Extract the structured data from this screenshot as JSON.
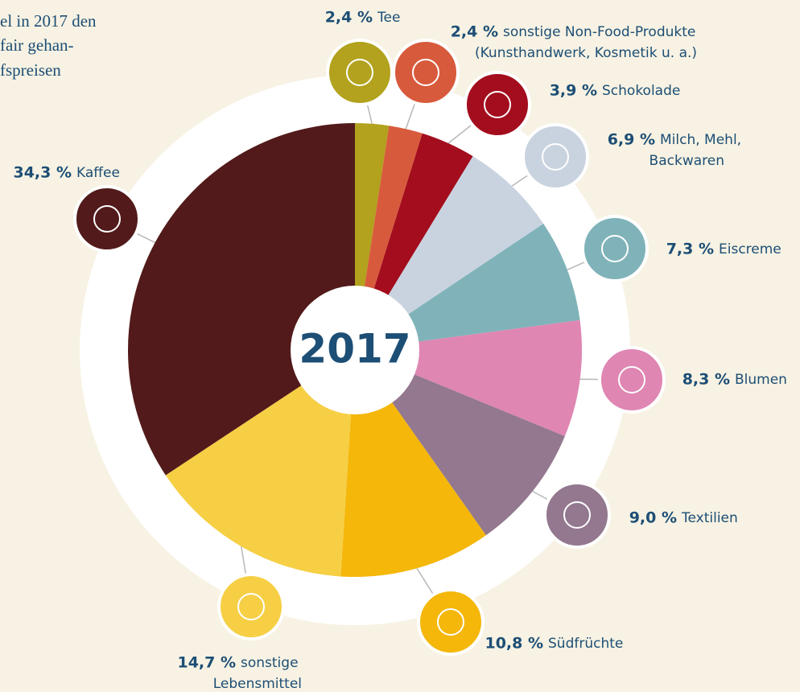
{
  "chart_data": {
    "type": "pie",
    "intro_text": [
      "el in 2017 den",
      "fair gehan-",
      "fspreisen"
    ],
    "center_label": "2017",
    "categories": [
      "Tee",
      "sonstige Non-Food-Produkte\n(Kunsthandwerk, Kosmetik u. a.)",
      "Schokolade",
      "Milch, Mehl,\nBackwaren",
      "Eiscreme",
      "Blumen",
      "Textilien",
      "Südfrüchte",
      "sonstige\nLebensmittel",
      "Kaffee"
    ],
    "values": [
      2.4,
      2.4,
      3.9,
      6.9,
      7.3,
      8.3,
      9.0,
      10.8,
      14.7,
      34.3
    ],
    "value_labels": [
      "2,4 %",
      "2,4 %",
      "3,9 %",
      "6,9 %",
      "7,3 %",
      "8,3 %",
      "9,0 %",
      "10,8 %",
      "14,7 %",
      "34,3 %"
    ],
    "colors": [
      "#b2a21d",
      "#d85a3c",
      "#a30d1d",
      "#c9d3e0",
      "#7fb3b9",
      "#df86b3",
      "#93788f",
      "#f4b70a",
      "#f6cf45",
      "#521a1a"
    ]
  }
}
